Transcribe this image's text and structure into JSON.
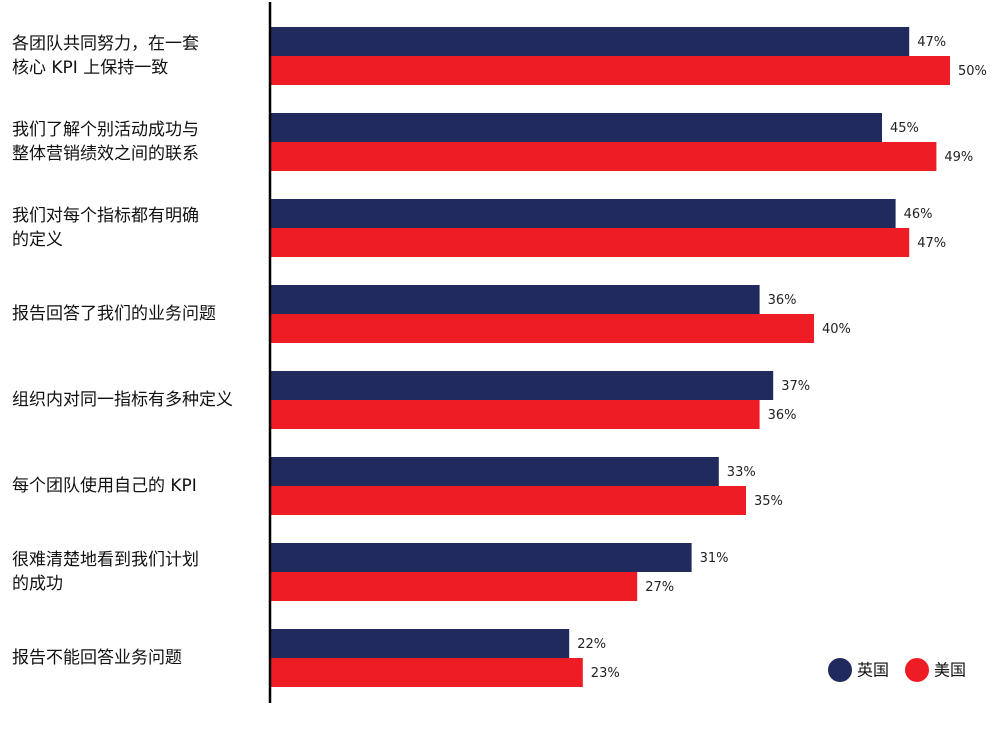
{
  "chart_data": {
    "type": "bar",
    "orientation": "horizontal",
    "categories": [
      [
        "各团队共同努力，在一套",
        "核心 KPI 上保持一致"
      ],
      [
        "我们了解个别活动成功与",
        "整体营销绩效之间的联系"
      ],
      [
        "我们对每个指标都有明确",
        "的定义"
      ],
      [
        "报告回答了我们的业务问题"
      ],
      [
        "组织内对同一指标有多种定义"
      ],
      [
        "每个团队使用自己的 KPI"
      ],
      [
        "很难清楚地看到我们计划",
        "的成功"
      ],
      [
        "报告不能回答业务问题"
      ]
    ],
    "series": [
      {
        "name": "英国",
        "color": "#202a5c",
        "values": [
          47,
          45,
          46,
          36,
          37,
          33,
          31,
          22
        ]
      },
      {
        "name": "美国",
        "color": "#ee1c25",
        "values": [
          50,
          49,
          47,
          40,
          36,
          35,
          27,
          23
        ]
      }
    ],
    "value_suffix": "%",
    "xlim": [
      0,
      55
    ],
    "grid": false,
    "legend_position": "bottom-right"
  }
}
